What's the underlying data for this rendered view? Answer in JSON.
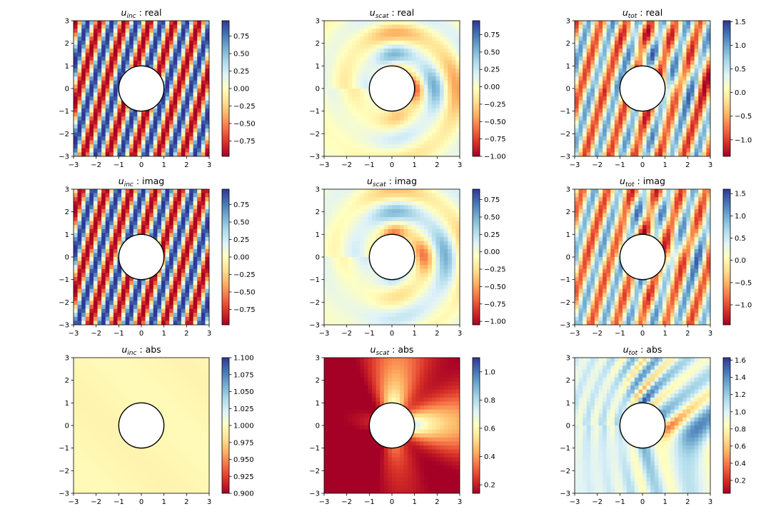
{
  "figure": {
    "colormap": "RdYlBu",
    "colormap_stops": [
      "#a50026",
      "#d73027",
      "#f46d43",
      "#fdae61",
      "#fee090",
      "#ffffbf",
      "#e0f3f8",
      "#abd9e9",
      "#74add1",
      "#4575b4",
      "#313695"
    ]
  },
  "chart_data": [
    {
      "type": "heatmap",
      "field": "inc",
      "part": "real",
      "title": {
        "u": "u",
        "sub": "inc",
        "rest": " : real"
      },
      "xlim": [
        -3,
        3
      ],
      "ylim": [
        -3,
        3
      ],
      "xticks": [
        "−3",
        "−2",
        "−1",
        "0",
        "1",
        "2",
        "3"
      ],
      "yticks": [
        "−3",
        "−2",
        "−1",
        "0",
        "1",
        "2",
        "3"
      ],
      "colorbar": {
        "range": [
          -0.97,
          0.97
        ],
        "ticks": [
          {
            "value": 0.75,
            "label": "0.75"
          },
          {
            "value": 0.5,
            "label": "0.50"
          },
          {
            "value": 0.25,
            "label": "0.25"
          },
          {
            "value": 0.0,
            "label": "0.00"
          },
          {
            "value": -0.25,
            "label": "−0.25"
          },
          {
            "value": -0.5,
            "label": "−0.50"
          },
          {
            "value": -0.75,
            "label": "−0.75"
          }
        ]
      },
      "scatterer": {
        "shape": "circle",
        "center": [
          0,
          0
        ],
        "radius": 1
      }
    },
    {
      "type": "heatmap",
      "field": "scat",
      "part": "real",
      "title": {
        "u": "u",
        "sub": "scat",
        "rest": " : real"
      },
      "xlim": [
        -3,
        3
      ],
      "ylim": [
        -3,
        3
      ],
      "xticks": [
        "−3",
        "−2",
        "−1",
        "0",
        "1",
        "2",
        "3"
      ],
      "yticks": [
        "−3",
        "−2",
        "−1",
        "0",
        "1",
        "2",
        "3"
      ],
      "colorbar": {
        "range": [
          -1.0,
          0.95
        ],
        "ticks": [
          {
            "value": 0.75,
            "label": "0.75"
          },
          {
            "value": 0.5,
            "label": "0.50"
          },
          {
            "value": 0.25,
            "label": "0.25"
          },
          {
            "value": 0.0,
            "label": "0.00"
          },
          {
            "value": -0.25,
            "label": "−0.25"
          },
          {
            "value": -0.5,
            "label": "−0.50"
          },
          {
            "value": -0.75,
            "label": "−0.75"
          },
          {
            "value": -1.0,
            "label": "−1.00"
          }
        ]
      },
      "scatterer": {
        "shape": "circle",
        "center": [
          0,
          0
        ],
        "radius": 1
      }
    },
    {
      "type": "heatmap",
      "field": "tot",
      "part": "real",
      "title": {
        "u": "u",
        "sub": "tot",
        "rest": " : real"
      },
      "xlim": [
        -3,
        3
      ],
      "ylim": [
        -3,
        3
      ],
      "xticks": [
        "−3",
        "−2",
        "−1",
        "0",
        "1",
        "2",
        "3"
      ],
      "yticks": [
        "−3",
        "−2",
        "−1",
        "0",
        "1",
        "2",
        "3"
      ],
      "colorbar": {
        "range": [
          -1.35,
          1.52
        ],
        "ticks": [
          {
            "value": 1.5,
            "label": "1.5"
          },
          {
            "value": 1.0,
            "label": "1.0"
          },
          {
            "value": 0.5,
            "label": "0.5"
          },
          {
            "value": 0.0,
            "label": "0.0"
          },
          {
            "value": -0.5,
            "label": "−0.5"
          },
          {
            "value": -1.0,
            "label": "−1.0"
          }
        ]
      },
      "scatterer": {
        "shape": "circle",
        "center": [
          0,
          0
        ],
        "radius": 1
      }
    },
    {
      "type": "heatmap",
      "field": "inc",
      "part": "imag",
      "title": {
        "u": "u",
        "sub": "inc",
        "rest": " : imag"
      },
      "xlim": [
        -3,
        3
      ],
      "ylim": [
        -3,
        3
      ],
      "xticks": [
        "−3",
        "−2",
        "−1",
        "0",
        "1",
        "2",
        "3"
      ],
      "yticks": [
        "−3",
        "−2",
        "−1",
        "0",
        "1",
        "2",
        "3"
      ],
      "colorbar": {
        "range": [
          -0.97,
          0.97
        ],
        "ticks": [
          {
            "value": 0.75,
            "label": "0.75"
          },
          {
            "value": 0.5,
            "label": "0.50"
          },
          {
            "value": 0.25,
            "label": "0.25"
          },
          {
            "value": 0.0,
            "label": "0.00"
          },
          {
            "value": -0.25,
            "label": "−0.25"
          },
          {
            "value": -0.5,
            "label": "−0.50"
          },
          {
            "value": -0.75,
            "label": "−0.75"
          }
        ]
      },
      "scatterer": {
        "shape": "circle",
        "center": [
          0,
          0
        ],
        "radius": 1
      }
    },
    {
      "type": "heatmap",
      "field": "scat",
      "part": "imag",
      "title": {
        "u": "u",
        "sub": "scat",
        "rest": " : imag"
      },
      "xlim": [
        -3,
        3
      ],
      "ylim": [
        -3,
        3
      ],
      "xticks": [
        "−3",
        "−2",
        "−1",
        "0",
        "1",
        "2",
        "3"
      ],
      "yticks": [
        "−3",
        "−2",
        "−1",
        "0",
        "1",
        "2",
        "3"
      ],
      "colorbar": {
        "range": [
          -1.05,
          0.9
        ],
        "ticks": [
          {
            "value": 0.75,
            "label": "0.75"
          },
          {
            "value": 0.5,
            "label": "0.50"
          },
          {
            "value": 0.25,
            "label": "0.25"
          },
          {
            "value": 0.0,
            "label": "0.00"
          },
          {
            "value": -0.25,
            "label": "−0.25"
          },
          {
            "value": -0.5,
            "label": "−0.50"
          },
          {
            "value": -0.75,
            "label": "−0.75"
          },
          {
            "value": -1.0,
            "label": "−1.00"
          }
        ]
      },
      "scatterer": {
        "shape": "circle",
        "center": [
          0,
          0
        ],
        "radius": 1
      }
    },
    {
      "type": "heatmap",
      "field": "tot",
      "part": "imag",
      "title": {
        "u": "u",
        "sub": "tot",
        "rest": " : imag"
      },
      "xlim": [
        -3,
        3
      ],
      "ylim": [
        -3,
        3
      ],
      "xticks": [
        "−3",
        "−2",
        "−1",
        "0",
        "1",
        "2",
        "3"
      ],
      "yticks": [
        "−3",
        "−2",
        "−1",
        "0",
        "1",
        "2",
        "3"
      ],
      "colorbar": {
        "range": [
          -1.45,
          1.6
        ],
        "ticks": [
          {
            "value": 1.5,
            "label": "1.5"
          },
          {
            "value": 1.0,
            "label": "1.0"
          },
          {
            "value": 0.5,
            "label": "0.5"
          },
          {
            "value": 0.0,
            "label": "0.0"
          },
          {
            "value": -0.5,
            "label": "−0.5"
          },
          {
            "value": -1.0,
            "label": "−1.0"
          }
        ]
      },
      "scatterer": {
        "shape": "circle",
        "center": [
          0,
          0
        ],
        "radius": 1
      }
    },
    {
      "type": "heatmap",
      "field": "inc",
      "part": "abs",
      "title": {
        "u": "u",
        "sub": "inc",
        "rest": " : abs"
      },
      "xlim": [
        -3,
        3
      ],
      "ylim": [
        -3,
        3
      ],
      "xticks": [
        "−3",
        "−2",
        "−1",
        "0",
        "1",
        "2",
        "3"
      ],
      "yticks": [
        "−3",
        "−2",
        "−1",
        "0",
        "1",
        "2",
        "3"
      ],
      "colorbar": {
        "range": [
          0.9,
          1.1
        ],
        "ticks": [
          {
            "value": 1.1,
            "label": "1.100"
          },
          {
            "value": 1.075,
            "label": "1.075"
          },
          {
            "value": 1.05,
            "label": "1.050"
          },
          {
            "value": 1.025,
            "label": "1.025"
          },
          {
            "value": 1.0,
            "label": "1.000"
          },
          {
            "value": 0.975,
            "label": "0.975"
          },
          {
            "value": 0.95,
            "label": "0.950"
          },
          {
            "value": 0.925,
            "label": "0.925"
          },
          {
            "value": 0.9,
            "label": "0.900"
          }
        ]
      },
      "scatterer": {
        "shape": "circle",
        "center": [
          0,
          0
        ],
        "radius": 1
      }
    },
    {
      "type": "heatmap",
      "field": "scat",
      "part": "abs",
      "title": {
        "u": "u",
        "sub": "scat",
        "rest": " : abs"
      },
      "xlim": [
        -3,
        3
      ],
      "ylim": [
        -3,
        3
      ],
      "xticks": [
        "−3",
        "−2",
        "−1",
        "0",
        "1",
        "2",
        "3"
      ],
      "yticks": [
        "−3",
        "−2",
        "−1",
        "0",
        "1",
        "2",
        "3"
      ],
      "colorbar": {
        "range": [
          0.14,
          1.1
        ],
        "ticks": [
          {
            "value": 1.0,
            "label": "1.0"
          },
          {
            "value": 0.8,
            "label": "0.8"
          },
          {
            "value": 0.6,
            "label": "0.6"
          },
          {
            "value": 0.4,
            "label": "0.4"
          },
          {
            "value": 0.2,
            "label": "0.2"
          }
        ]
      },
      "scatterer": {
        "shape": "circle",
        "center": [
          0,
          0
        ],
        "radius": 1
      }
    },
    {
      "type": "heatmap",
      "field": "tot",
      "part": "abs",
      "title": {
        "u": "u",
        "sub": "tot",
        "rest": " : abs"
      },
      "xlim": [
        -3,
        3
      ],
      "ylim": [
        -3,
        3
      ],
      "xticks": [
        "−3",
        "−2",
        "−1",
        "0",
        "1",
        "2",
        "3"
      ],
      "yticks": [
        "−3",
        "−2",
        "−1",
        "0",
        "1",
        "2",
        "3"
      ],
      "colorbar": {
        "range": [
          0.05,
          1.63
        ],
        "ticks": [
          {
            "value": 1.6,
            "label": "1.6"
          },
          {
            "value": 1.4,
            "label": "1.4"
          },
          {
            "value": 1.2,
            "label": "1.2"
          },
          {
            "value": 1.0,
            "label": "1.0"
          },
          {
            "value": 0.8,
            "label": "0.8"
          },
          {
            "value": 0.6,
            "label": "0.6"
          },
          {
            "value": 0.4,
            "label": "0.4"
          },
          {
            "value": 0.2,
            "label": "0.2"
          }
        ]
      },
      "scatterer": {
        "shape": "circle",
        "center": [
          0,
          0
        ],
        "radius": 1
      }
    }
  ]
}
